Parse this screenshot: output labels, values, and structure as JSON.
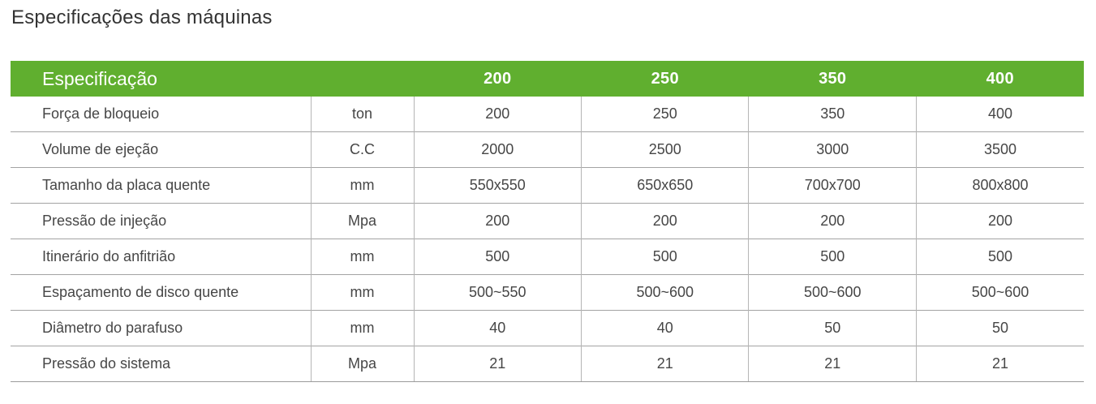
{
  "page": {
    "title": "Especificações das máquinas"
  },
  "colors": {
    "header_bg": "#60AF2F",
    "header_text": "#FFFFFF",
    "title_text": "#333333",
    "body_text": "#464646",
    "row_border": "#A3A3A3",
    "column_border": "#B5B5B5",
    "bottom_border": "#9A9A9A"
  },
  "table": {
    "header": {
      "label": "Especificação",
      "columns": [
        "200",
        "250",
        "350",
        "400"
      ]
    },
    "rows": [
      {
        "label": "Força de bloqueio",
        "unit": "ton",
        "values": [
          "200",
          "250",
          "350",
          "400"
        ]
      },
      {
        "label": "Volume de ejeção",
        "unit": "C.C",
        "values": [
          "2000",
          "2500",
          "3000",
          "3500"
        ]
      },
      {
        "label": "Tamanho da placa quente",
        "unit": "mm",
        "values": [
          "550x550",
          "650x650",
          "700x700",
          "800x800"
        ]
      },
      {
        "label": "Pressão de injeção",
        "unit": "Mpa",
        "values": [
          "200",
          "200",
          "200",
          "200"
        ]
      },
      {
        "label": "Itinerário do anfitrião",
        "unit": "mm",
        "values": [
          "500",
          "500",
          "500",
          "500"
        ]
      },
      {
        "label": "Espaçamento de disco quente",
        "unit": "mm",
        "values": [
          "500~550",
          "500~600",
          "500~600",
          "500~600"
        ]
      },
      {
        "label": "Diâmetro do parafuso",
        "unit": "mm",
        "values": [
          "40",
          "40",
          "50",
          "50"
        ]
      },
      {
        "label": "Pressão do sistema",
        "unit": "Mpa",
        "values": [
          "21",
          "21",
          "21",
          "21"
        ]
      }
    ]
  }
}
